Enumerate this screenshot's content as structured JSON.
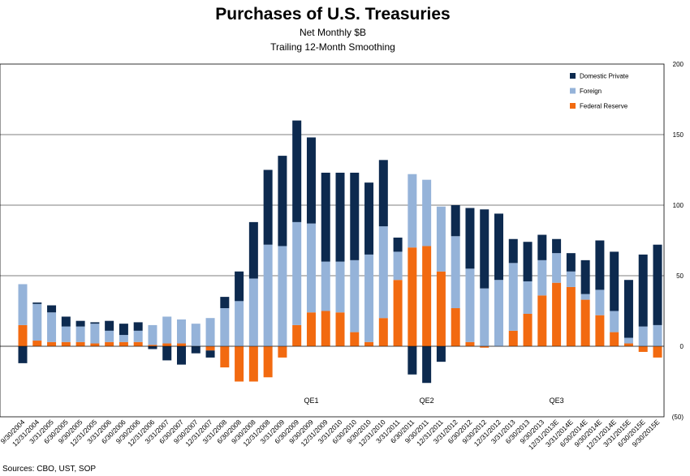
{
  "chart_data": {
    "type": "bar",
    "stacked": true,
    "title": "Purchases of U.S. Treasuries",
    "subtitle": "Net Monthly $B",
    "subtitle2": "Trailing 12-Month Smoothing",
    "ylim": [
      -50,
      200
    ],
    "yticks": [
      {
        "value": 200,
        "label": "200"
      },
      {
        "value": 150,
        "label": "150"
      },
      {
        "value": 100,
        "label": "100"
      },
      {
        "value": 50,
        "label": "50"
      },
      {
        "value": 0,
        "label": "0"
      },
      {
        "value": -50,
        "label": "(50)"
      }
    ],
    "categories": [
      "9/30/2004",
      "12/31/2004",
      "3/31/2005",
      "6/30/2005",
      "9/30/2005",
      "12/31/2005",
      "3/31/2006",
      "6/30/2006",
      "9/30/2006",
      "12/31/2006",
      "3/31/2007",
      "6/30/2007",
      "9/30/2007",
      "12/31/2007",
      "3/31/2008",
      "6/30/2008",
      "9/30/2008",
      "12/31/2008",
      "3/31/2009",
      "6/30/2009",
      "9/30/2009",
      "12/31/2009",
      "3/31/2010",
      "6/30/2010",
      "9/30/2010",
      "12/31/2010",
      "3/31/2011",
      "6/30/2011",
      "9/30/2011",
      "12/31/2011",
      "3/31/2012",
      "6/30/2012",
      "9/30/2012",
      "12/31/2012",
      "3/31/2013",
      "6/30/2013",
      "9/30/2013",
      "12/31/2013E",
      "3/31/2014E",
      "6/30/2014E",
      "9/30/2014E",
      "12/31/2014E",
      "3/31/2015E",
      "6/30/2015E",
      "9/30/2015E"
    ],
    "series": [
      {
        "name": "Domestic Private",
        "color": "#0d2a4f",
        "values": [
          -12,
          1,
          5,
          7,
          4,
          1,
          7,
          8,
          6,
          -2,
          -10,
          -13,
          -5,
          -5,
          8,
          21,
          40,
          53,
          64,
          72,
          61,
          63,
          63,
          62,
          51,
          47,
          10,
          -20,
          -26,
          -11,
          22,
          43,
          56,
          47,
          17,
          28,
          18,
          10,
          13,
          24,
          35,
          42,
          41,
          51,
          57
        ]
      },
      {
        "name": "Foreign",
        "color": "#95b3d9",
        "values": [
          29,
          26,
          21,
          11,
          11,
          14,
          8,
          5,
          8,
          14,
          19,
          17,
          16,
          20,
          27,
          32,
          48,
          72,
          71,
          73,
          63,
          35,
          36,
          51,
          62,
          65,
          20,
          52,
          47,
          46,
          51,
          52,
          41,
          47,
          48,
          23,
          25,
          21,
          11,
          4,
          18,
          15,
          4,
          14,
          15
        ]
      },
      {
        "name": "Federal Reserve",
        "color": "#f26a10",
        "values": [
          15,
          4,
          3,
          3,
          3,
          2,
          3,
          3,
          3,
          1,
          2,
          2,
          0,
          -3,
          -15,
          -25,
          -25,
          -22,
          -8,
          15,
          24,
          25,
          24,
          10,
          3,
          20,
          47,
          70,
          71,
          53,
          27,
          3,
          -1,
          0,
          11,
          23,
          36,
          45,
          42,
          33,
          22,
          10,
          2,
          -4,
          -8
        ]
      }
    ],
    "annotations": [
      {
        "text": "QE1",
        "category_index": 20
      },
      {
        "text": "QE2",
        "category_index": 28
      },
      {
        "text": "QE3",
        "category_index": 37
      }
    ],
    "legend_position": "top-right",
    "grid": true
  },
  "sources": "Sources: CBO, UST, SOP"
}
